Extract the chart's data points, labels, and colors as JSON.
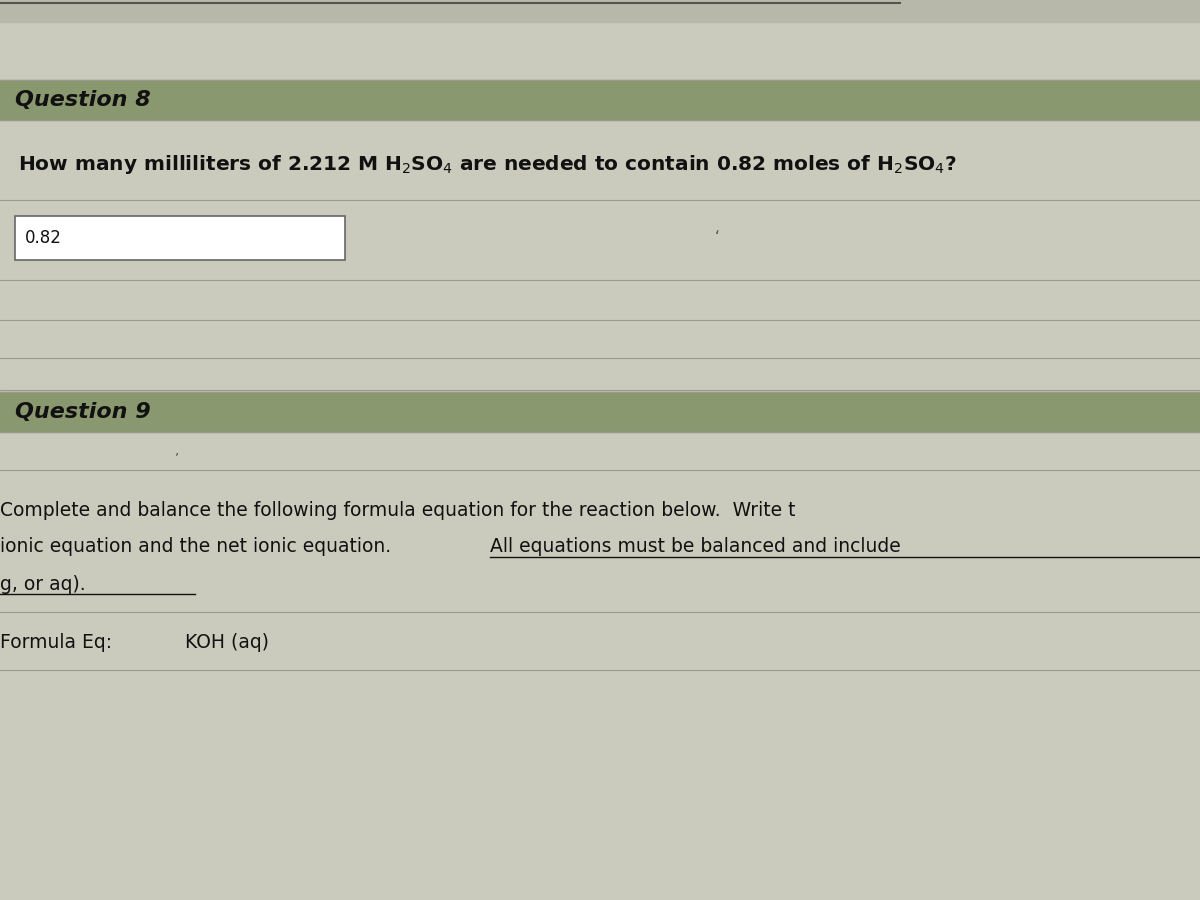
{
  "bg_color": "#c9c9bb",
  "top_area_color": "#c0c0b2",
  "top_line_color": "#888880",
  "header_bar_color": "#8a9870",
  "header_text_color": "#111111",
  "body_bg_color": "#cbcbbd",
  "section_line_color": "#999990",
  "q8_header": "Question 8",
  "q8_question_part1": "How many milliliters of 2.212 M H",
  "q8_question_sub1": "2",
  "q8_question_part2": "SO",
  "q8_question_sub2": "4",
  "q8_question_part3": " are needed to contain 0.82 moles of H",
  "q8_question_sub3": "2",
  "q8_question_part4": "SO",
  "q8_question_sub4": "4",
  "q8_question_end": "?",
  "q8_answer": "0.82",
  "q9_header": "Question 9",
  "q9_line1": "Complete and balance the following formula equation for the reaction below.  Write t",
  "q9_line2_plain": "ionic equation and the net ionic equation. ",
  "q9_line2_underline": "All equations must be balanced and include",
  "q9_line3_underline": "g, or aq).",
  "q9_line4_label": "Formula Eq:",
  "q9_line4_content": "KOH (aq)",
  "answer_box_color": "#ffffff",
  "answer_box_border": "#666666",
  "text_color": "#111111",
  "tick_mark_color": "#555555"
}
